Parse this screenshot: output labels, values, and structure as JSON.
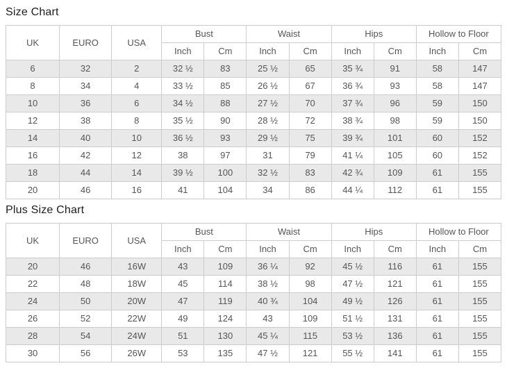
{
  "page": {
    "size_chart_title": "Size Chart",
    "plus_size_chart_title": "Plus Size Chart"
  },
  "columns": {
    "single": [
      "UK",
      "EURO",
      "USA"
    ],
    "groups": [
      "Bust",
      "Waist",
      "Hips",
      "Hollow to Floor"
    ],
    "sub_inch": "Inch",
    "sub_cm": "Cm"
  },
  "size_chart": {
    "rows": [
      [
        "6",
        "32",
        "2",
        "32 ½",
        "83",
        "25 ½",
        "65",
        "35 ¾",
        "91",
        "58",
        "147"
      ],
      [
        "8",
        "34",
        "4",
        "33 ½",
        "85",
        "26 ½",
        "67",
        "36 ¾",
        "93",
        "58",
        "147"
      ],
      [
        "10",
        "36",
        "6",
        "34 ½",
        "88",
        "27 ½",
        "70",
        "37 ¾",
        "96",
        "59",
        "150"
      ],
      [
        "12",
        "38",
        "8",
        "35 ½",
        "90",
        "28 ½",
        "72",
        "38 ¾",
        "98",
        "59",
        "150"
      ],
      [
        "14",
        "40",
        "10",
        "36 ½",
        "93",
        "29 ½",
        "75",
        "39 ¾",
        "101",
        "60",
        "152"
      ],
      [
        "16",
        "42",
        "12",
        "38",
        "97",
        "31",
        "79",
        "41 ¼",
        "105",
        "60",
        "152"
      ],
      [
        "18",
        "44",
        "14",
        "39 ½",
        "100",
        "32 ½",
        "83",
        "42 ¾",
        "109",
        "61",
        "155"
      ],
      [
        "20",
        "46",
        "16",
        "41",
        "104",
        "34",
        "86",
        "44 ¼",
        "112",
        "61",
        "155"
      ]
    ]
  },
  "plus_size_chart": {
    "rows": [
      [
        "20",
        "46",
        "16W",
        "43",
        "109",
        "36 ¼",
        "92",
        "45 ½",
        "116",
        "61",
        "155"
      ],
      [
        "22",
        "48",
        "18W",
        "45",
        "114",
        "38 ½",
        "98",
        "47 ½",
        "121",
        "61",
        "155"
      ],
      [
        "24",
        "50",
        "20W",
        "47",
        "119",
        "40 ¾",
        "104",
        "49 ½",
        "126",
        "61",
        "155"
      ],
      [
        "26",
        "52",
        "22W",
        "49",
        "124",
        "43",
        "109",
        "51 ½",
        "131",
        "61",
        "155"
      ],
      [
        "28",
        "54",
        "24W",
        "51",
        "130",
        "45 ¼",
        "115",
        "53 ½",
        "136",
        "61",
        "155"
      ],
      [
        "30",
        "56",
        "26W",
        "53",
        "135",
        "47 ½",
        "121",
        "55 ½",
        "141",
        "61",
        "155"
      ]
    ]
  }
}
